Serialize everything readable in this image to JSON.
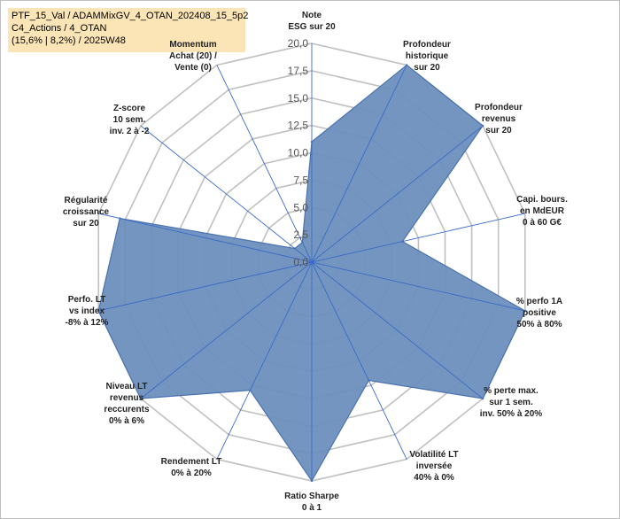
{
  "chart_data": {
    "type": "radar",
    "title_lines": [
      "PTF_15_Val / ADAMMixGV_4_OTAN_202408_15_5p2",
      "C4_Actions / 4_OTAN",
      "(15,6% | 8,2%) / 2025W48"
    ],
    "rlim": [
      0,
      20
    ],
    "ticks": [
      "0,0",
      "2,5",
      "5,0",
      "7,5",
      "10,0",
      "12,5",
      "15,0",
      "17,5",
      "20,0"
    ],
    "tick_values": [
      0,
      2.5,
      5,
      7.5,
      10,
      12.5,
      15,
      17.5,
      20
    ],
    "axes": [
      {
        "label": [
          "Note",
          "ESG sur 20"
        ],
        "value": 11
      },
      {
        "label": [
          "Profondeur",
          "historique",
          "sur 20"
        ],
        "value": 20
      },
      {
        "label": [
          "Profondeur",
          "revenus",
          "sur 20"
        ],
        "value": 20
      },
      {
        "label": [
          "Capi. bours.",
          "en MdEUR",
          "0 à 60 G€"
        ],
        "value": 8.5
      },
      {
        "label": [
          "% perfo 1A",
          "positive",
          "50% à 80%"
        ],
        "value": 20
      },
      {
        "label": [
          "% perte max.",
          "sur 1 sem.",
          "inv. 50% à 20%"
        ],
        "value": 20
      },
      {
        "label": [
          "Volatilité LT",
          "inversée",
          "40% à 0%"
        ],
        "value": 12
      },
      {
        "label": [
          "Ratio Sharpe",
          "0 à 1"
        ],
        "value": 20
      },
      {
        "label": [
          "Rendement LT",
          "0% à 20%"
        ],
        "value": 13
      },
      {
        "label": [
          "Niveau LT",
          "revenus",
          "reccurents",
          "0% à 6%"
        ],
        "value": 20
      },
      {
        "label": [
          "Perfo. LT",
          "vs index",
          "-8% à 12%"
        ],
        "value": 20
      },
      {
        "label": [
          "Régularité",
          "croissance",
          "sur 20"
        ],
        "value": 18
      },
      {
        "label": [
          "Z-score",
          "10 sem.",
          "inv. 2 à -2"
        ],
        "value": 2
      },
      {
        "label": [
          "Momentum",
          "Achat (20) /",
          "Vente (0)"
        ],
        "value": 2
      }
    ],
    "fill_color": "#6b8fbd",
    "line_color": "#4a72b0",
    "grid_color": "#c0c0c0",
    "spoke_color": "#3b6cc8",
    "momentum_label_color": "#9a8050"
  }
}
